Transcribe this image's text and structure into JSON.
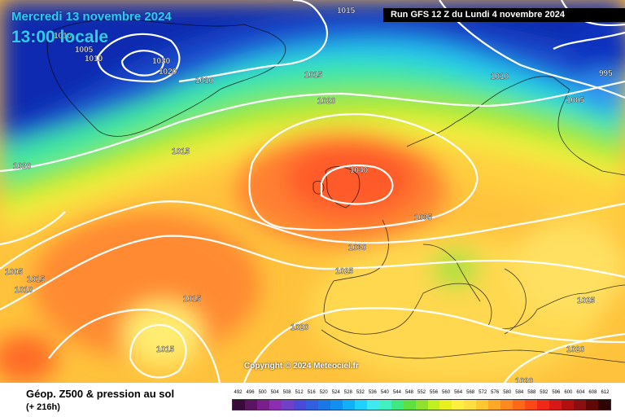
{
  "header": {
    "date": "Mercredi 13 novembre 2024",
    "time": "13:00 locale",
    "run": "Run GFS 12 Z du Lundi 4 novembre 2024"
  },
  "copyright": "Copyright © 2024 Meteociel.fr",
  "legend": {
    "title": "Géop. Z500 & pression au sol",
    "subtitle": "(+ 216h)",
    "scale_values": [
      "492",
      "496",
      "500",
      "504",
      "508",
      "512",
      "516",
      "520",
      "524",
      "528",
      "532",
      "536",
      "540",
      "544",
      "548",
      "552",
      "556",
      "560",
      "564",
      "568",
      "572",
      "576",
      "580",
      "584",
      "588",
      "592",
      "596",
      "600",
      "604",
      "608",
      "612"
    ],
    "scale_colors": [
      "#3a0a3a",
      "#5a1460",
      "#7a1e8c",
      "#8c2db4",
      "#7040c8",
      "#4a4ad8",
      "#3060e0",
      "#1878e8",
      "#1090f0",
      "#10b0f8",
      "#20d0ff",
      "#40e8f0",
      "#40f0c0",
      "#40e880",
      "#60e040",
      "#90e030",
      "#c0f020",
      "#e8f020",
      "#fff040",
      "#ffe040",
      "#ffc830",
      "#ffa828",
      "#ff8820",
      "#ff6818",
      "#ff4818",
      "#f02818",
      "#d81818",
      "#b01010",
      "#881010",
      "#600808",
      "#300404"
    ]
  },
  "isobar_labels": [
    "1015",
    "1010",
    "1005",
    "1010",
    "1030",
    "1020",
    "1010",
    "1015",
    "1020",
    "1015",
    "1020",
    "1040",
    "1035",
    "1030",
    "1025",
    "1015",
    "1020",
    "1015",
    "1005",
    "1010",
    "1015",
    "1010",
    "1005",
    "995",
    "1020",
    "1025",
    "1020"
  ]
}
